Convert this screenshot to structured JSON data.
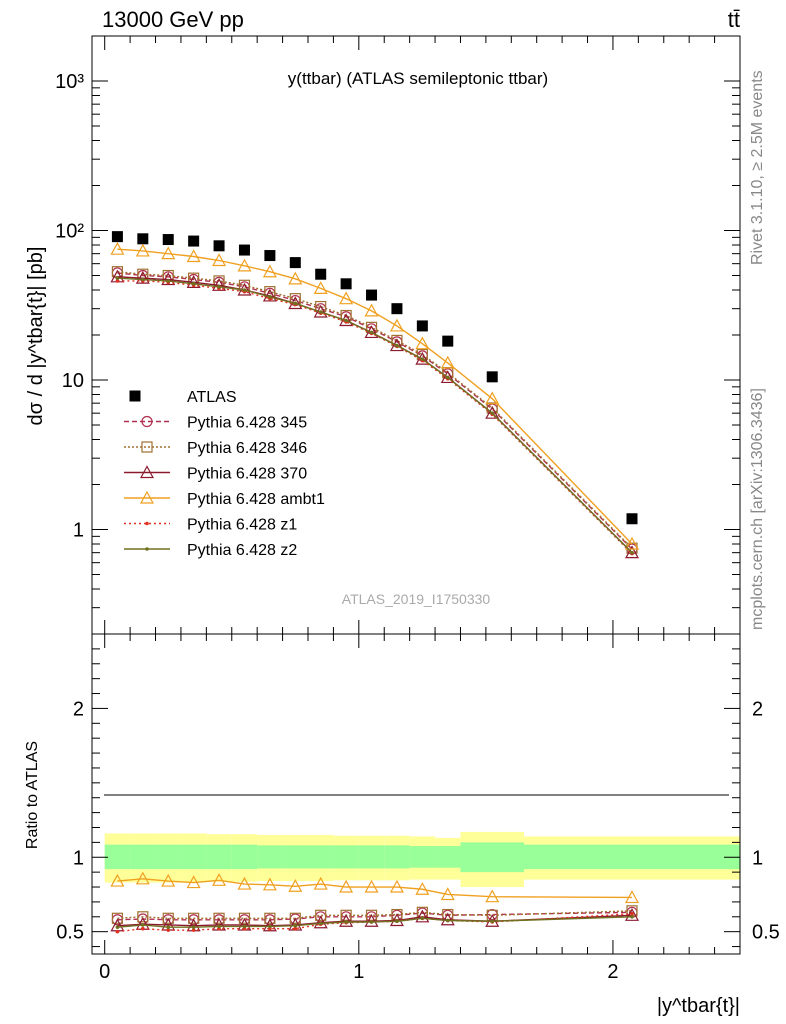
{
  "header": {
    "energy_label": "13000 GeV pp",
    "process_label": "tt̄",
    "side_label_top": "Rivet 3.1.10, ≥ 2.5M events",
    "side_label_bottom": "mcplots.cern.ch [arXiv:1306.3436]",
    "analysis_id": "ATLAS_2019_I1750330"
  },
  "chart_data": [
    {
      "type": "scatter",
      "panel": "main",
      "title": "y(ttbar) (ATLAS semileptonic ttbar)",
      "ylabel": "dσ / d |y^tbar{t}| [pb]",
      "xlabel": "|y^tbar{t}|",
      "x_scale": "linear",
      "y_scale": "log",
      "xlim": [
        -0.05,
        2.5
      ],
      "ylim": [
        0.2,
        2000
      ],
      "y_ticks": [
        1,
        10,
        100,
        1000
      ],
      "y_tick_labels": [
        "1",
        "10",
        "10²",
        "10³"
      ],
      "x": [
        0.05,
        0.15,
        0.25,
        0.35,
        0.45,
        0.55,
        0.65,
        0.75,
        0.85,
        0.95,
        1.05,
        1.15,
        1.25,
        1.35,
        1.525,
        2.075
      ],
      "legend_location": "center-left",
      "series": [
        {
          "name": "ATLAS",
          "style": "data",
          "color": "#000000",
          "marker": "square-filled",
          "values": [
            91,
            88,
            87,
            85,
            79,
            74,
            68,
            61,
            51,
            44,
            37,
            30,
            23,
            18.2,
            10.5,
            1.18
          ]
        },
        {
          "name": "Pythia 6.428 345",
          "color": "#b03050",
          "marker": "circle-open",
          "dash": "5,3",
          "values": [
            52,
            50,
            49,
            47,
            45,
            42,
            38,
            34,
            30,
            26.5,
            22,
            18,
            14.5,
            11,
            6.4,
            0.74
          ]
        },
        {
          "name": "Pythia 6.428 346",
          "color": "#a07030",
          "marker": "square-open",
          "dash": "2,2",
          "values": [
            53,
            51,
            50,
            48,
            46,
            43,
            39,
            35,
            31,
            27,
            22.5,
            18.4,
            14.8,
            11.2,
            6.5,
            0.75
          ]
        },
        {
          "name": "Pythia 6.428 370",
          "color": "#8b1a2e",
          "marker": "triangle-open",
          "dash": "",
          "values": [
            49,
            48,
            47,
            45,
            43,
            40,
            36.5,
            32.5,
            28.5,
            25,
            20.8,
            17,
            13.8,
            10.4,
            6.0,
            0.7
          ]
        },
        {
          "name": "Pythia 6.428 ambt1",
          "color": "#f0a020",
          "marker": "triangle-open",
          "dash": "",
          "values": [
            75,
            73,
            70,
            67,
            63,
            58,
            53,
            47.5,
            41,
            35,
            29,
            23,
            17.5,
            13,
            7.5,
            0.8
          ]
        },
        {
          "name": "Pythia 6.428 z1",
          "color": "#e03020",
          "marker": "dot",
          "dash": "2,3",
          "values": [
            46,
            46,
            45,
            43,
            41,
            39,
            35,
            32,
            28,
            24.5,
            20.5,
            16.8,
            13.5,
            10.2,
            5.9,
            0.69
          ]
        },
        {
          "name": "Pythia 6.428 z2",
          "color": "#707020",
          "marker": "dot",
          "dash": "",
          "values": [
            48,
            47,
            46,
            44,
            42,
            40,
            36,
            32.5,
            28.5,
            25,
            20.8,
            17,
            13.8,
            10.4,
            6.0,
            0.7
          ]
        }
      ]
    },
    {
      "type": "line",
      "panel": "ratio",
      "ylabel": "Ratio to ATLAS",
      "x_scale": "linear",
      "xlim": [
        -0.05,
        2.5
      ],
      "ylim": [
        0.35,
        2.5
      ],
      "y_ticks": [
        0.5,
        1,
        2
      ],
      "y_tick_labels": [
        "0.5",
        "1",
        "2"
      ],
      "x_ticks": [
        0,
        1,
        2
      ],
      "x_tick_labels": [
        "0",
        "1",
        "2"
      ],
      "x": [
        0.05,
        0.15,
        0.25,
        0.35,
        0.45,
        0.55,
        0.65,
        0.75,
        0.85,
        0.95,
        1.05,
        1.15,
        1.25,
        1.35,
        1.525,
        2.075
      ],
      "bands": {
        "bin_edges": [
          0.0,
          0.1,
          0.2,
          0.3,
          0.4,
          0.5,
          0.6,
          0.7,
          0.8,
          0.9,
          1.0,
          1.1,
          1.2,
          1.3,
          1.4,
          1.65,
          2.5
        ],
        "outer_low": [
          0.83,
          0.83,
          0.83,
          0.83,
          0.835,
          0.835,
          0.84,
          0.84,
          0.84,
          0.845,
          0.845,
          0.845,
          0.85,
          0.85,
          0.8,
          0.85
        ],
        "outer_high": [
          1.16,
          1.16,
          1.16,
          1.16,
          1.155,
          1.155,
          1.15,
          1.15,
          1.15,
          1.145,
          1.145,
          1.145,
          1.14,
          1.13,
          1.17,
          1.14
        ],
        "inner_low": [
          0.92,
          0.92,
          0.92,
          0.92,
          0.92,
          0.92,
          0.925,
          0.925,
          0.925,
          0.925,
          0.925,
          0.925,
          0.93,
          0.93,
          0.9,
          0.92
        ],
        "inner_high": [
          1.085,
          1.085,
          1.085,
          1.085,
          1.085,
          1.085,
          1.08,
          1.08,
          1.08,
          1.08,
          1.08,
          1.08,
          1.075,
          1.075,
          1.1,
          1.085
        ],
        "outer_color": "#ffff99",
        "inner_color": "#99ff99"
      },
      "series": [
        {
          "name": "Pythia 6.428 345",
          "color": "#b03050",
          "marker": "circle-open",
          "dash": "5,3",
          "values": [
            0.58,
            0.585,
            0.58,
            0.58,
            0.58,
            0.58,
            0.58,
            0.585,
            0.6,
            0.6,
            0.6,
            0.61,
            0.625,
            0.61,
            0.615,
            0.63
          ]
        },
        {
          "name": "Pythia 6.428 346",
          "color": "#a07030",
          "marker": "square-open",
          "dash": "2,2",
          "values": [
            0.59,
            0.6,
            0.59,
            0.59,
            0.59,
            0.59,
            0.59,
            0.59,
            0.61,
            0.61,
            0.61,
            0.615,
            0.63,
            0.615,
            0.61,
            0.64
          ]
        },
        {
          "name": "Pythia 6.428 370",
          "color": "#8b1a2e",
          "marker": "triangle-open",
          "dash": "",
          "values": [
            0.54,
            0.55,
            0.545,
            0.54,
            0.545,
            0.545,
            0.54,
            0.545,
            0.56,
            0.57,
            0.57,
            0.575,
            0.6,
            0.58,
            0.57,
            0.61
          ]
        },
        {
          "name": "Pythia 6.428 ambt1",
          "color": "#f0a020",
          "marker": "triangle-open",
          "dash": "",
          "values": [
            0.84,
            0.855,
            0.84,
            0.83,
            0.845,
            0.82,
            0.815,
            0.805,
            0.82,
            0.8,
            0.8,
            0.8,
            0.785,
            0.75,
            0.735,
            0.73
          ]
        },
        {
          "name": "Pythia 6.428 z1",
          "color": "#e03020",
          "marker": "dot",
          "dash": "2,3",
          "values": [
            0.5,
            0.52,
            0.51,
            0.51,
            0.52,
            0.52,
            0.52,
            0.52,
            0.55,
            0.56,
            0.565,
            0.57,
            0.59,
            0.575,
            0.565,
            0.62
          ]
        },
        {
          "name": "Pythia 6.428 z2",
          "color": "#707020",
          "marker": "dot",
          "dash": "",
          "values": [
            0.53,
            0.545,
            0.53,
            0.53,
            0.535,
            0.535,
            0.535,
            0.54,
            0.555,
            0.565,
            0.565,
            0.57,
            0.59,
            0.575,
            0.57,
            0.6
          ]
        }
      ]
    }
  ]
}
